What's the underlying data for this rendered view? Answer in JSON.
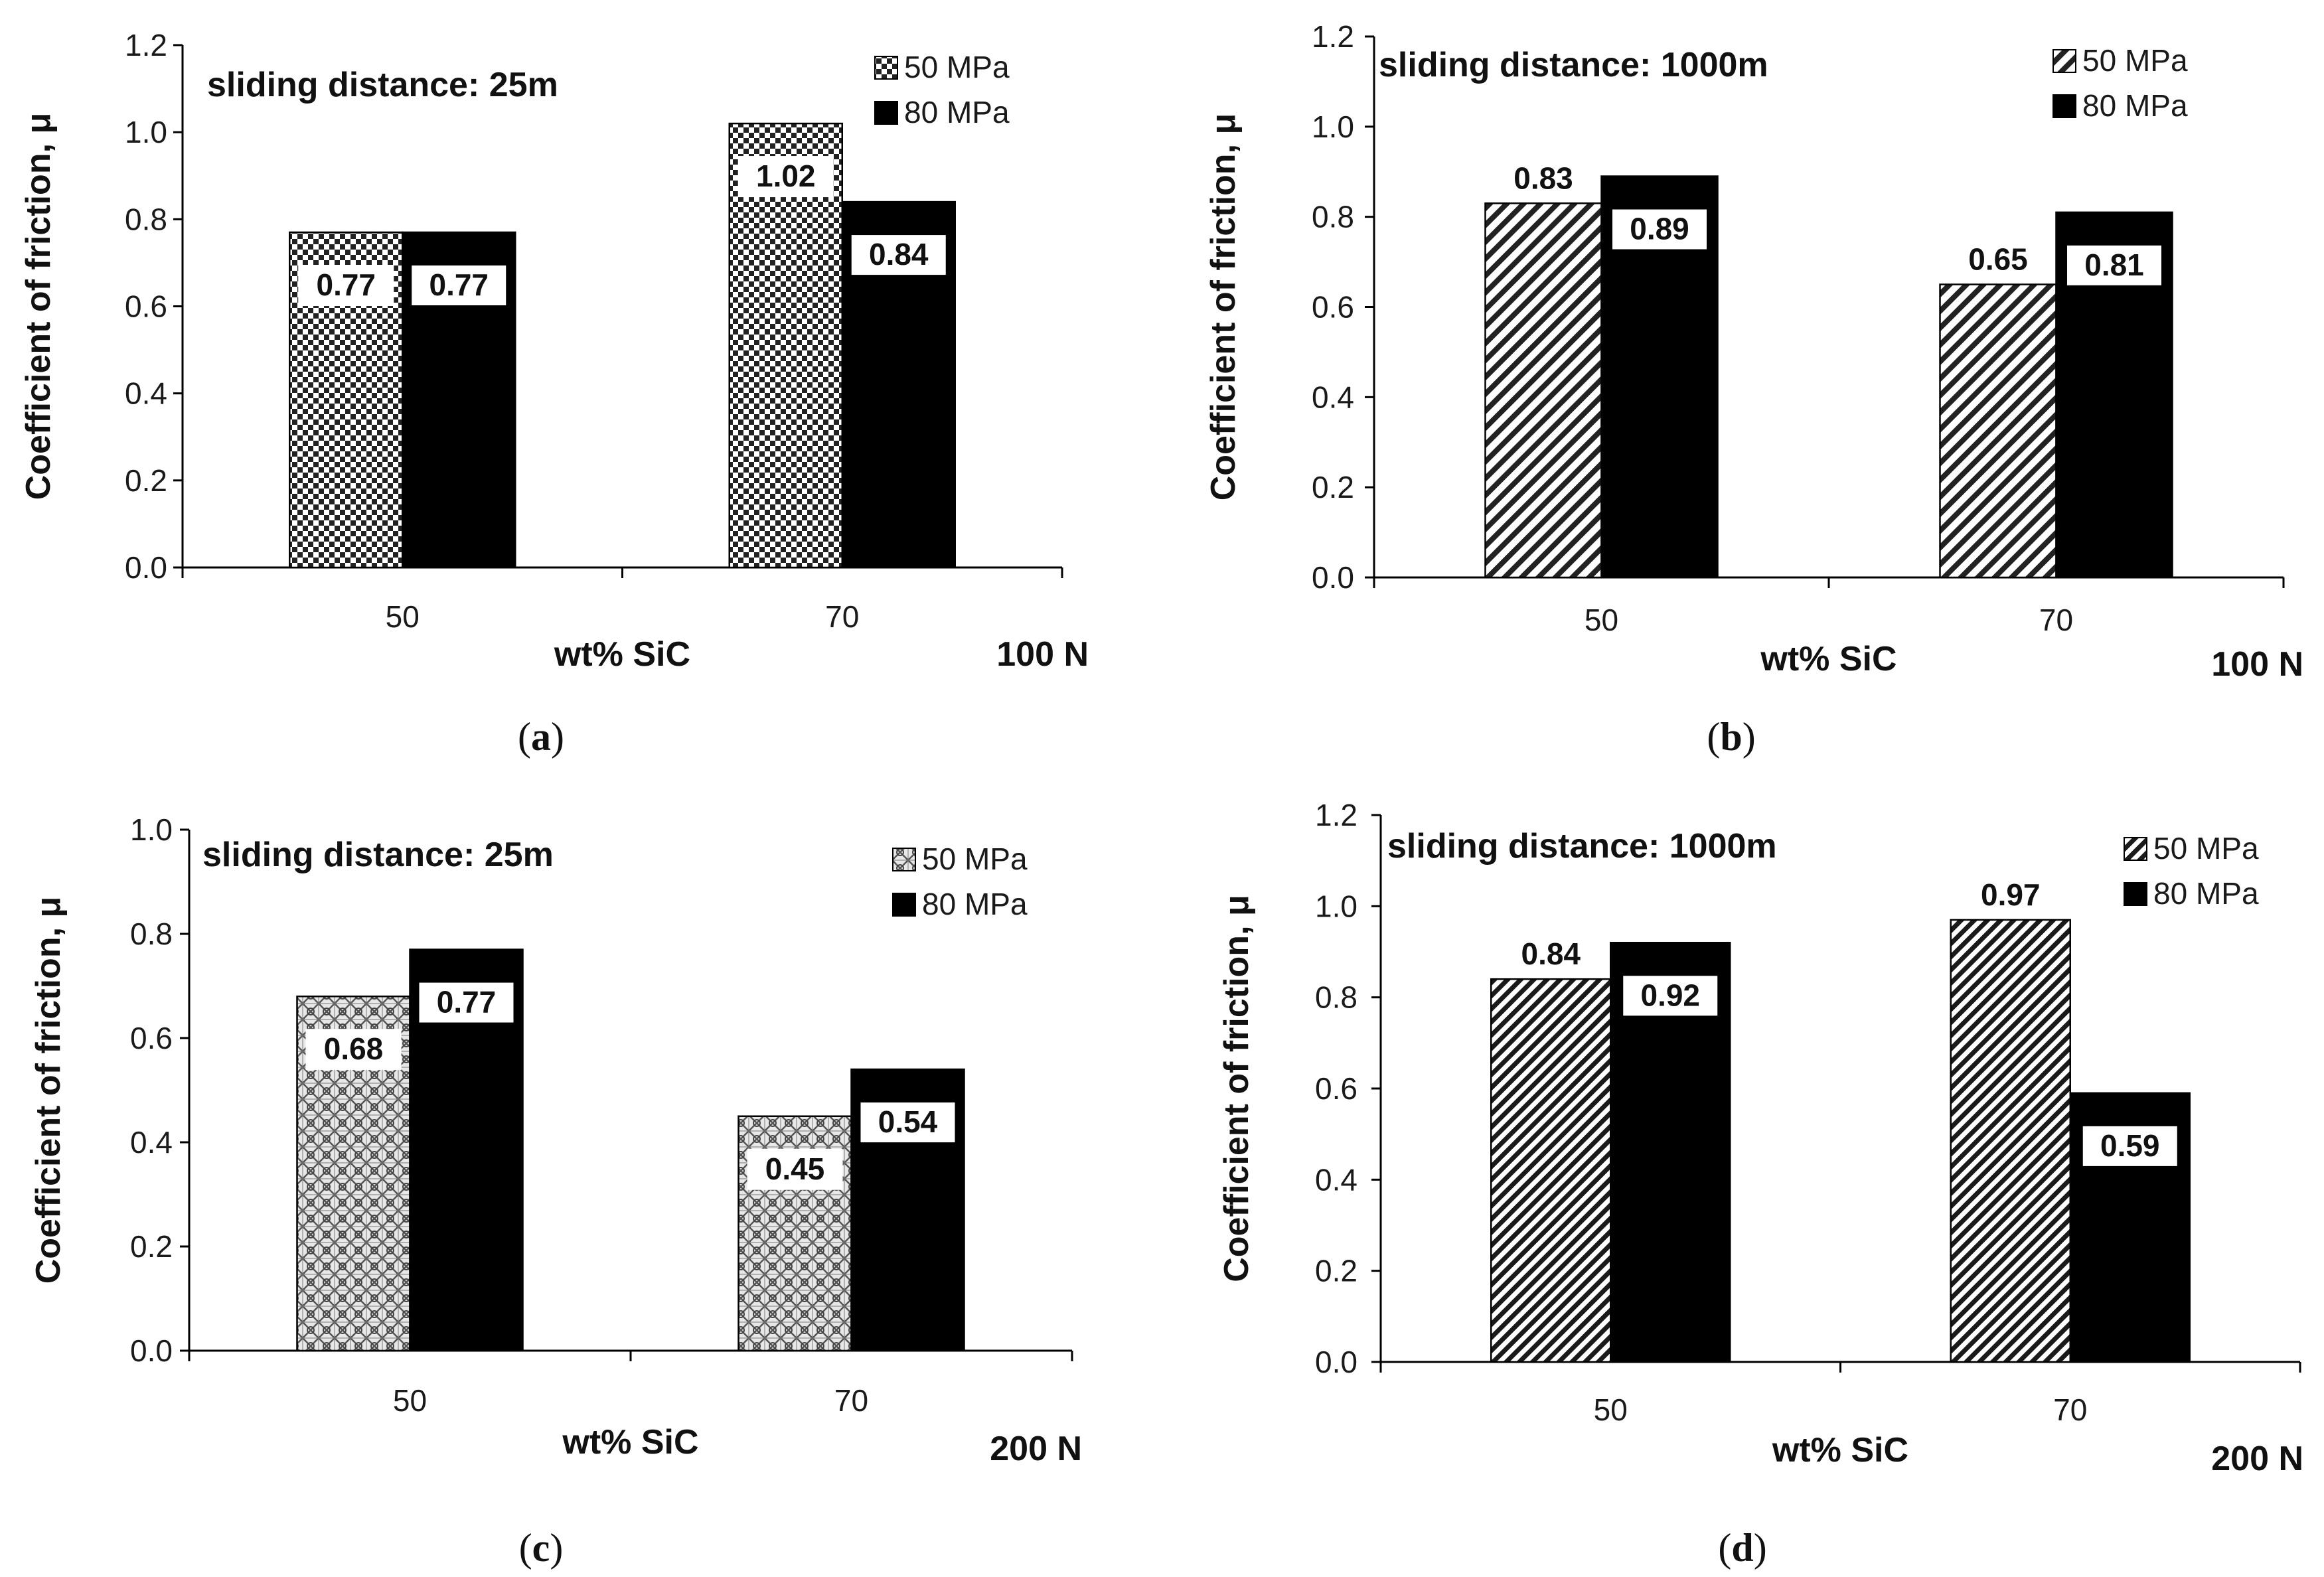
{
  "chart_data": [
    {
      "type": "bar",
      "panel": "a",
      "ylabel": "Coefficient of friction, μ",
      "xlabel": "wt% SiC",
      "load_label": "100 N",
      "annotation": "sliding distance: 25m",
      "categories": [
        "50",
        "70"
      ],
      "ylim": [
        0,
        1.2
      ],
      "ytick_step": 0.2,
      "yticks": [
        "0.0",
        "0.2",
        "0.4",
        "0.6",
        "0.8",
        "1.0",
        "1.2"
      ],
      "legend_position": "top-right",
      "series": [
        {
          "name": "50 MPa",
          "pattern": "checker",
          "values": [
            0.77,
            1.02
          ],
          "labels": [
            "0.77",
            "1.02"
          ]
        },
        {
          "name": "80 MPa",
          "pattern": "solid",
          "values": [
            0.77,
            0.84
          ],
          "labels": [
            "0.77",
            "0.84"
          ]
        }
      ]
    },
    {
      "type": "bar",
      "panel": "b",
      "ylabel": "Coefficient of friction, μ",
      "xlabel": "wt% SiC",
      "load_label": "100 N",
      "annotation": "sliding distance: 1000m",
      "categories": [
        "50",
        "70"
      ],
      "ylim": [
        0,
        1.2
      ],
      "ytick_step": 0.2,
      "yticks": [
        "0.0",
        "0.2",
        "0.4",
        "0.6",
        "0.8",
        "1.0",
        "1.2"
      ],
      "legend_position": "top-right",
      "series": [
        {
          "name": "50 MPa",
          "pattern": "diagonal",
          "values": [
            0.83,
            0.65
          ],
          "labels": [
            "0.83",
            "0.65"
          ]
        },
        {
          "name": "80 MPa",
          "pattern": "solid",
          "values": [
            0.89,
            0.81
          ],
          "labels": [
            "0.89",
            "0.81"
          ]
        }
      ]
    },
    {
      "type": "bar",
      "panel": "c",
      "ylabel": "Coefficient of friction, μ",
      "xlabel": "wt% SiC",
      "load_label": "200 N",
      "annotation": "sliding distance: 25m",
      "categories": [
        "50",
        "70"
      ],
      "ylim": [
        0,
        1.0
      ],
      "ytick_step": 0.2,
      "yticks": [
        "0.0",
        "0.2",
        "0.4",
        "0.6",
        "0.8",
        "1.0"
      ],
      "legend_position": "top-right",
      "series": [
        {
          "name": "50 MPa",
          "pattern": "weave",
          "values": [
            0.68,
            0.45
          ],
          "labels": [
            "0.68",
            "0.45"
          ]
        },
        {
          "name": "80 MPa",
          "pattern": "solid",
          "values": [
            0.77,
            0.54
          ],
          "labels": [
            "0.77",
            "0.54"
          ]
        }
      ]
    },
    {
      "type": "bar",
      "panel": "d",
      "ylabel": "Coefficient of friction, μ",
      "xlabel": "wt% SiC",
      "load_label": "200 N",
      "annotation": "sliding distance: 1000m",
      "categories": [
        "50",
        "70"
      ],
      "ylim": [
        0,
        1.2
      ],
      "ytick_step": 0.2,
      "yticks": [
        "0.0",
        "0.2",
        "0.4",
        "0.6",
        "0.8",
        "1.0",
        "1.2"
      ],
      "legend_position": "top-right",
      "series": [
        {
          "name": "50 MPa",
          "pattern": "diagonal-dense",
          "values": [
            0.84,
            0.97
          ],
          "labels": [
            "0.84",
            "0.97"
          ]
        },
        {
          "name": "80 MPa",
          "pattern": "solid",
          "values": [
            0.92,
            0.59
          ],
          "labels": [
            "0.92",
            "0.59"
          ]
        }
      ]
    }
  ],
  "panel_captions": [
    "(a)",
    "(b)",
    "(c)",
    "(d)"
  ],
  "colors": {
    "bar_solid": "#000000",
    "axis": "#000000",
    "text": "#111111",
    "background": "#ffffff"
  }
}
